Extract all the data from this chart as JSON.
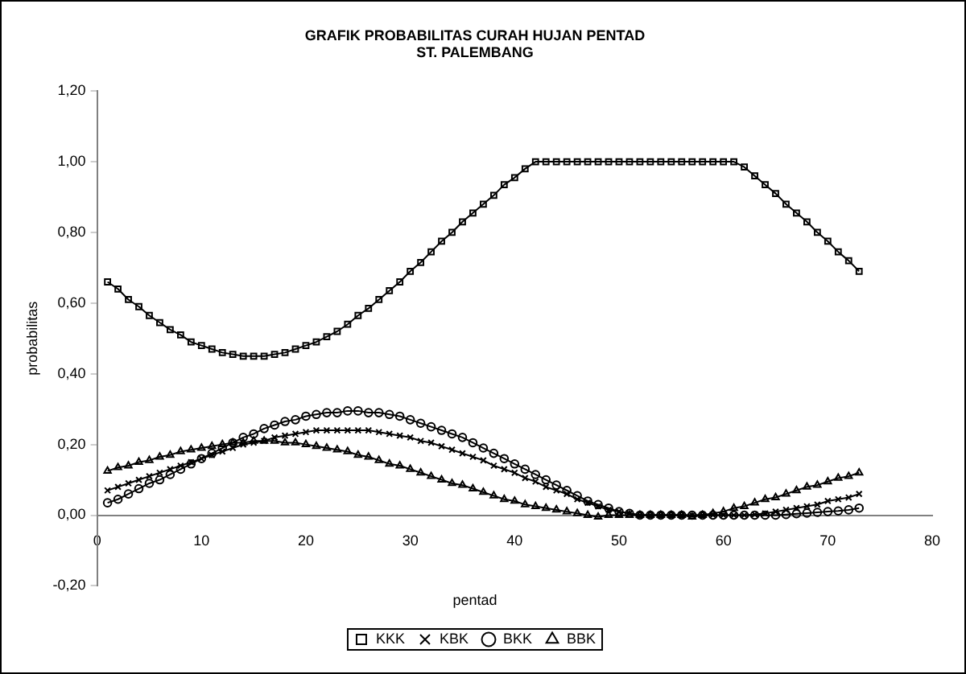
{
  "chart_data": {
    "type": "line",
    "title": "GRAFIK PROBABILITAS CURAH HUJAN PENTAD",
    "subtitle": "ST. PALEMBANG",
    "xlabel": "pentad",
    "ylabel": "probabilitas",
    "x": [
      1,
      2,
      3,
      4,
      5,
      6,
      7,
      8,
      9,
      10,
      11,
      12,
      13,
      14,
      15,
      16,
      17,
      18,
      19,
      20,
      21,
      22,
      23,
      24,
      25,
      26,
      27,
      28,
      29,
      30,
      31,
      32,
      33,
      34,
      35,
      36,
      37,
      38,
      39,
      40,
      41,
      42,
      43,
      44,
      45,
      46,
      47,
      48,
      49,
      50,
      51,
      52,
      53,
      54,
      55,
      56,
      57,
      58,
      59,
      60,
      61,
      62,
      63,
      64,
      65,
      66,
      67,
      68,
      69,
      70,
      71,
      72,
      73
    ],
    "series": [
      {
        "name": "KKK",
        "color": "#000000",
        "marker": "square",
        "values": [
          0.66,
          0.64,
          0.61,
          0.59,
          0.565,
          0.545,
          0.525,
          0.51,
          0.49,
          0.48,
          0.47,
          0.46,
          0.455,
          0.45,
          0.45,
          0.45,
          0.455,
          0.46,
          0.47,
          0.48,
          0.49,
          0.505,
          0.52,
          0.54,
          0.565,
          0.585,
          0.61,
          0.635,
          0.66,
          0.69,
          0.715,
          0.745,
          0.775,
          0.8,
          0.83,
          0.855,
          0.88,
          0.905,
          0.935,
          0.955,
          0.98,
          1,
          1,
          1,
          1,
          1,
          1,
          1,
          1,
          1,
          1,
          1,
          1,
          1,
          1,
          1,
          1,
          1,
          1,
          1,
          1,
          0.985,
          0.96,
          0.935,
          0.91,
          0.88,
          0.855,
          0.83,
          0.8,
          0.775,
          0.745,
          0.72,
          0.69
        ]
      },
      {
        "name": "KBK",
        "color": "#000000",
        "marker": "cross",
        "values": [
          0.07,
          0.08,
          0.09,
          0.1,
          0.11,
          0.12,
          0.13,
          0.14,
          0.15,
          0.16,
          0.17,
          0.18,
          0.19,
          0.2,
          0.205,
          0.21,
          0.22,
          0.225,
          0.23,
          0.235,
          0.24,
          0.24,
          0.24,
          0.24,
          0.24,
          0.24,
          0.235,
          0.23,
          0.225,
          0.22,
          0.21,
          0.205,
          0.195,
          0.185,
          0.175,
          0.165,
          0.155,
          0.14,
          0.13,
          0.12,
          0.105,
          0.095,
          0.08,
          0.07,
          0.06,
          0.045,
          0.035,
          0.025,
          0.015,
          0.01,
          0.005,
          0,
          0,
          0,
          0,
          0,
          0,
          0,
          0,
          0,
          0,
          0,
          0.002,
          0.005,
          0.01,
          0.015,
          0.02,
          0.025,
          0.03,
          0.04,
          0.045,
          0.05,
          0.06
        ]
      },
      {
        "name": "BKK",
        "color": "#000000",
        "marker": "circle",
        "values": [
          0.035,
          0.045,
          0.06,
          0.075,
          0.09,
          0.1,
          0.115,
          0.13,
          0.145,
          0.16,
          0.175,
          0.19,
          0.205,
          0.22,
          0.23,
          0.245,
          0.255,
          0.265,
          0.27,
          0.28,
          0.285,
          0.29,
          0.29,
          0.295,
          0.295,
          0.29,
          0.29,
          0.285,
          0.28,
          0.27,
          0.26,
          0.25,
          0.24,
          0.23,
          0.22,
          0.205,
          0.19,
          0.175,
          0.16,
          0.145,
          0.13,
          0.115,
          0.1,
          0.085,
          0.07,
          0.055,
          0.04,
          0.03,
          0.02,
          0.01,
          0.005,
          0,
          0,
          0,
          0,
          0,
          0,
          0,
          0,
          0,
          0,
          0,
          0,
          0,
          0,
          0.002,
          0.004,
          0.006,
          0.008,
          0.01,
          0.012,
          0.015,
          0.02
        ]
      },
      {
        "name": "BBK",
        "color": "#000000",
        "marker": "triangle",
        "values": [
          0.125,
          0.135,
          0.14,
          0.15,
          0.155,
          0.165,
          0.17,
          0.18,
          0.185,
          0.19,
          0.195,
          0.2,
          0.205,
          0.205,
          0.21,
          0.21,
          0.21,
          0.205,
          0.205,
          0.2,
          0.195,
          0.19,
          0.185,
          0.18,
          0.17,
          0.165,
          0.155,
          0.145,
          0.14,
          0.13,
          0.12,
          0.11,
          0.1,
          0.09,
          0.085,
          0.075,
          0.065,
          0.055,
          0.045,
          0.04,
          0.03,
          0.025,
          0.02,
          0.015,
          0.01,
          0.005,
          0,
          -0.005,
          0,
          0,
          0,
          0,
          0,
          0,
          0,
          0,
          -0.005,
          0,
          0.005,
          0.01,
          0.02,
          0.025,
          0.035,
          0.045,
          0.05,
          0.06,
          0.07,
          0.08,
          0.085,
          0.095,
          0.105,
          0.11,
          0.12
        ]
      }
    ],
    "xlim": [
      0,
      80
    ],
    "xticks": [
      0,
      10,
      20,
      30,
      40,
      50,
      60,
      70,
      80
    ],
    "ylim": [
      -0.2,
      1.2
    ],
    "yticks": [
      {
        "value": -0.2,
        "label": "-0,20"
      },
      {
        "value": 0,
        "label": "0,00"
      },
      {
        "value": 0.2,
        "label": "0,20"
      },
      {
        "value": 0.4,
        "label": "0,40"
      },
      {
        "value": 0.6,
        "label": "0,60"
      },
      {
        "value": 0.8,
        "label": "0,80"
      },
      {
        "value": 1,
        "label": "1,00"
      },
      {
        "value": 1.2,
        "label": "1,20"
      }
    ],
    "grid": false,
    "legend": "bottom",
    "line_style": "solid"
  }
}
